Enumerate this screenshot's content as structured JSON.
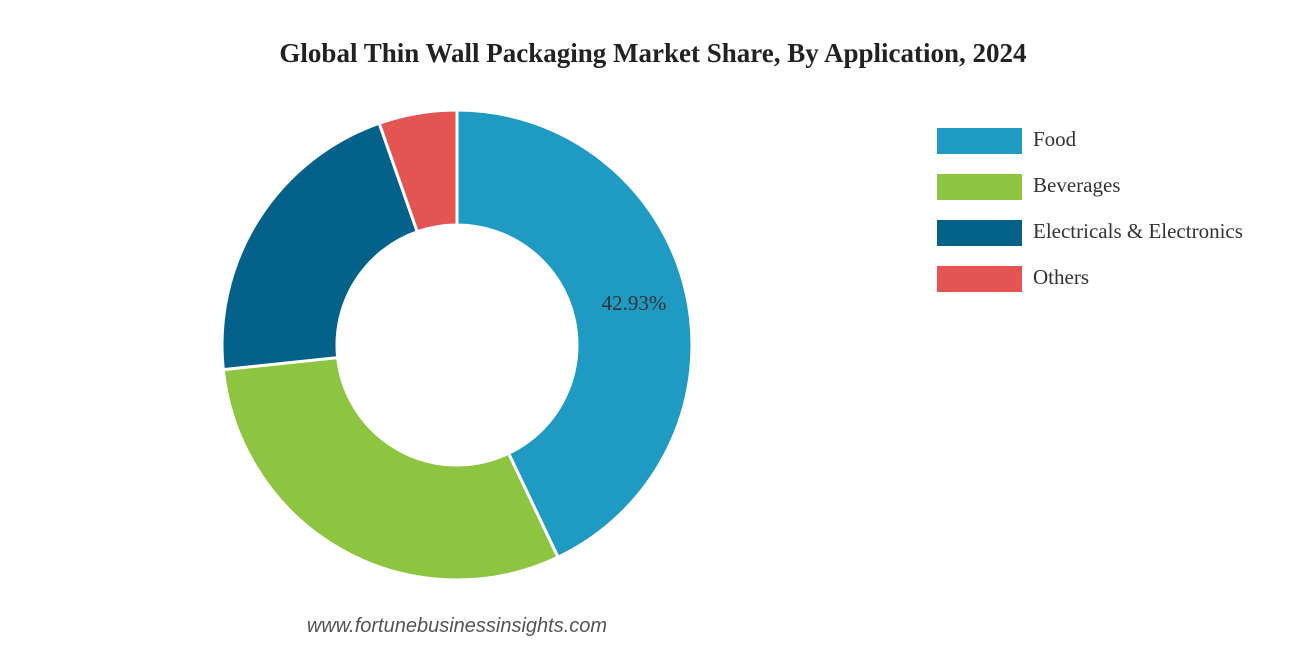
{
  "chart_data": {
    "type": "donut",
    "title": "Global Thin Wall Packaging Market Share, By Application, 2024",
    "categories": [
      "Food",
      "Beverages",
      "Electricals & Electronics",
      "Others"
    ],
    "values": [
      42.93,
      30.4,
      21.3,
      5.37
    ],
    "value_labels": [
      "42.93%",
      null,
      null,
      null
    ],
    "colors": [
      "#1e9ac3",
      "#8dc540",
      "#04618a",
      "#e35453"
    ],
    "legend": "top-right",
    "source": "www.fortunebusinessinsights.com"
  }
}
